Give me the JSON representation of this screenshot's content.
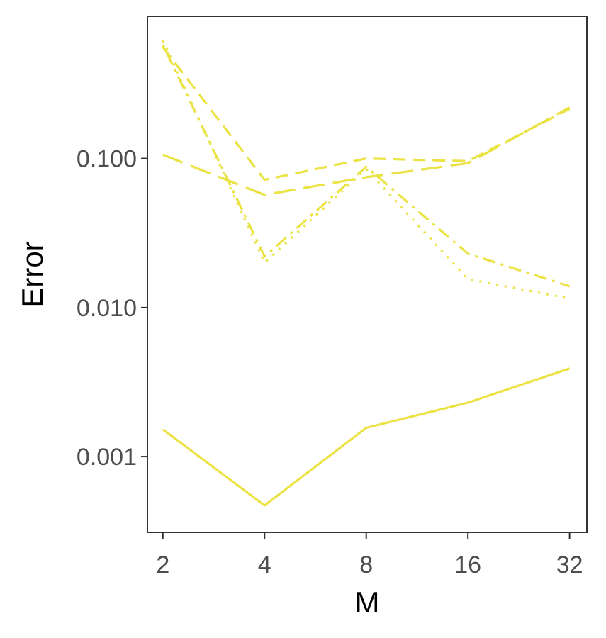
{
  "chart_data": {
    "type": "line",
    "title": "",
    "xlabel": "M",
    "ylabel": "Error",
    "x_scale": "log2",
    "y_scale": "log10",
    "x": [
      2,
      4,
      8,
      16,
      32
    ],
    "x_tick_labels": [
      "2",
      "4",
      "8",
      "16",
      "32"
    ],
    "y_ticks": [
      0.001,
      0.01,
      0.1
    ],
    "y_tick_labels": [
      "0.001",
      "0.010",
      "0.100"
    ],
    "xlim": [
      1.8,
      36
    ],
    "ylim": [
      0.00031,
      0.9
    ],
    "grid": false,
    "legend": "none",
    "series_color": "#ebe244",
    "series": [
      {
        "values": [
          0.00152,
          0.00047,
          0.00156,
          0.0023,
          0.0039
        ],
        "dash": "solid"
      },
      {
        "values": [
          0.106,
          0.057,
          0.075,
          0.093,
          0.22
        ],
        "dash": "longdash"
      },
      {
        "values": [
          0.56,
          0.072,
          0.1,
          0.096,
          0.215
        ],
        "dash": "dashed"
      },
      {
        "values": [
          0.58,
          0.022,
          0.088,
          0.023,
          0.0139
        ],
        "dash": "dotdash"
      },
      {
        "values": [
          0.62,
          0.02,
          0.085,
          0.0155,
          0.0115
        ],
        "dash": "dotted"
      }
    ]
  }
}
